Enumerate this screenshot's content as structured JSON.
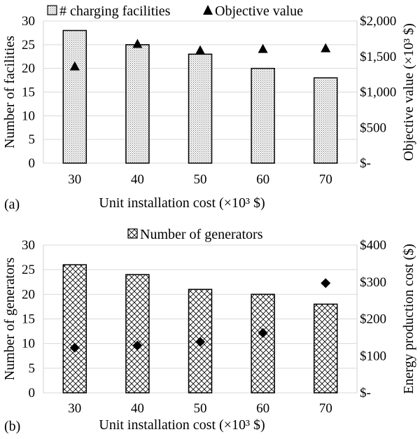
{
  "chart_data": [
    {
      "type": "bar",
      "panel_label": "(a)",
      "categories": [
        "30",
        "40",
        "50",
        "60",
        "70"
      ],
      "xlabel": "Unit installation cost (×10³ $)",
      "ylabel": "Number of facilities",
      "y2label": "Objective value (×10³ $)",
      "ylim": [
        0,
        30
      ],
      "y2lim": [
        0,
        2000
      ],
      "yticks": [
        "0",
        "5",
        "10",
        "15",
        "20",
        "25",
        "30"
      ],
      "y2ticks": [
        "$-",
        "$500",
        "$1,000",
        "$1,500",
        "$2,000"
      ],
      "grid": true,
      "legend_position": "top",
      "series": [
        {
          "name": "# charging facilities",
          "kind": "bar",
          "axis": "left",
          "values": [
            28,
            25,
            23,
            20,
            18
          ]
        },
        {
          "name": "Objective value",
          "kind": "marker-triangle",
          "axis": "right",
          "values": [
            1365,
            1680,
            1590,
            1610,
            1620
          ]
        }
      ]
    },
    {
      "type": "bar",
      "panel_label": "(b)",
      "categories": [
        "30",
        "40",
        "50",
        "60",
        "70"
      ],
      "xlabel": "Unit installation cost (×10³ $)",
      "ylabel": "Number of generators",
      "y2label": "Energy production cost ($)",
      "ylim": [
        0,
        30
      ],
      "y2lim": [
        0,
        400
      ],
      "yticks": [
        "0",
        "5",
        "10",
        "15",
        "20",
        "25",
        "30"
      ],
      "y2ticks": [
        "$-",
        "$100",
        "$200",
        "$300",
        "$400"
      ],
      "grid": true,
      "legend_position": "top",
      "series": [
        {
          "name": "Number of generators",
          "kind": "bar",
          "axis": "left",
          "values": [
            26,
            24,
            21,
            20,
            18
          ]
        },
        {
          "name": "",
          "kind": "marker-diamond",
          "axis": "right",
          "values": [
            122,
            128,
            138,
            162,
            297
          ]
        }
      ]
    }
  ]
}
